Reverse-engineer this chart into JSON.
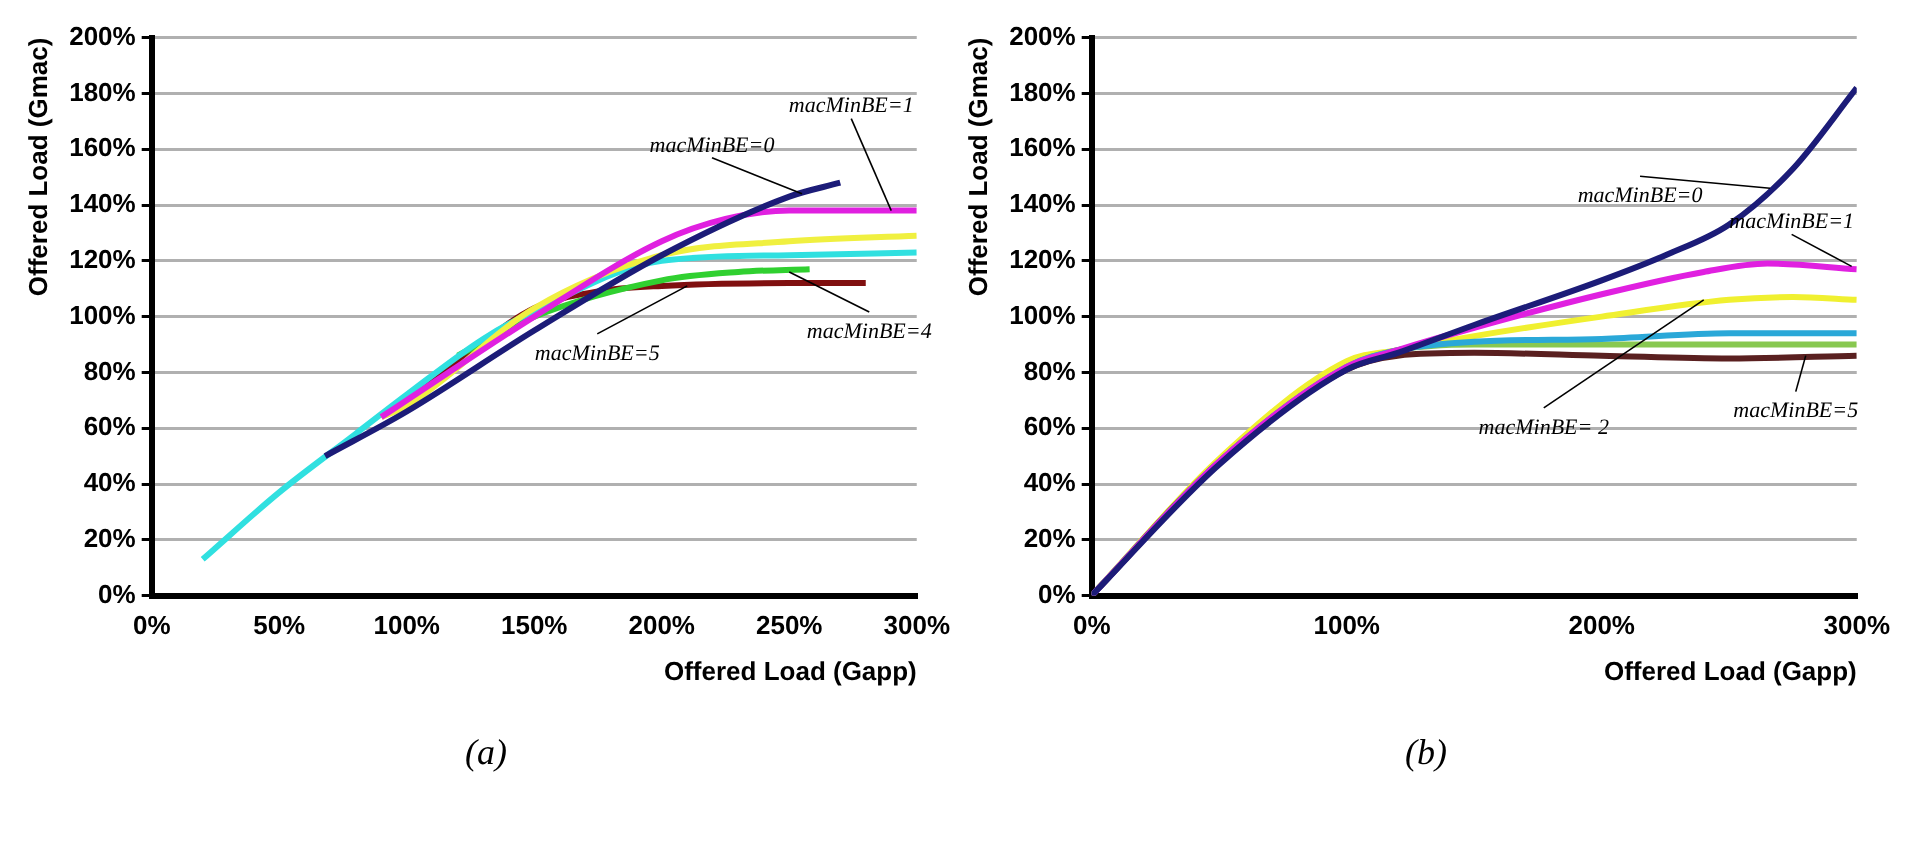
{
  "chart_data": [
    {
      "type": "line",
      "xlabel": "Offered Load (Gapp)",
      "ylabel": "Offered Load (Gmac)",
      "xlim": [
        0,
        300
      ],
      "ylim": [
        0,
        200
      ],
      "xticks": [
        {
          "value": 0,
          "label": "0%"
        },
        {
          "value": 50,
          "label": "50%"
        },
        {
          "value": 100,
          "label": "100%"
        },
        {
          "value": 150,
          "label": "150%"
        },
        {
          "value": 200,
          "label": "200%"
        },
        {
          "value": 250,
          "label": "250%"
        },
        {
          "value": 300,
          "label": "300%"
        }
      ],
      "yticks": [
        {
          "value": 0,
          "label": "0%"
        },
        {
          "value": 20,
          "label": "20%"
        },
        {
          "value": 40,
          "label": "40%"
        },
        {
          "value": 60,
          "label": "60%"
        },
        {
          "value": 80,
          "label": "80%"
        },
        {
          "value": 100,
          "label": "100%"
        },
        {
          "value": 120,
          "label": "120%"
        },
        {
          "value": 140,
          "label": "140%"
        },
        {
          "value": 160,
          "label": "160%"
        },
        {
          "value": 180,
          "label": "180%"
        },
        {
          "value": 200,
          "label": "200%"
        }
      ],
      "grid": "y",
      "legend": false,
      "marker": "none",
      "line_style": "solid",
      "series": [
        {
          "color": "#1c1c78",
          "x": [
            68,
            100,
            150,
            200,
            250,
            270
          ],
          "values": [
            50,
            66,
            95,
            122,
            143,
            148
          ]
        },
        {
          "color": "#e020e0",
          "x": [
            90,
            100,
            150,
            200,
            225,
            250,
            300
          ],
          "values": [
            64,
            70,
            100,
            127,
            135,
            138,
            138
          ]
        },
        {
          "color": "#f0f040",
          "x": [
            90,
            100,
            150,
            200,
            250,
            300
          ],
          "values": [
            64,
            68,
            103,
            122,
            127,
            129
          ]
        },
        {
          "color": "#30e0e0",
          "x": [
            20,
            50,
            80,
            100,
            130,
            150,
            200,
            250,
            300
          ],
          "values": [
            13,
            37,
            58,
            72,
            92,
            102,
            120,
            122,
            123
          ]
        },
        {
          "color": "#30d030",
          "x": [
            120,
            150,
            200,
            230,
            258
          ],
          "values": [
            86,
            100,
            113,
            116,
            117
          ]
        },
        {
          "color": "#801010",
          "x": [
            90,
            120,
            150,
            175,
            200,
            250,
            280
          ],
          "values": [
            64,
            84,
            103,
            109,
            111,
            112,
            112
          ]
        }
      ],
      "annotations": [
        {
          "text": "macMinBE=1",
          "x": 290,
          "y": 138
        },
        {
          "text": "macMinBE=0",
          "x": 255,
          "y": 144
        },
        {
          "text": "macMinBE=5",
          "x": 210,
          "y": 111
        },
        {
          "text": "macMinBE=4",
          "x": 250,
          "y": 116
        },
        "(a)"
      ]
    },
    {
      "type": "line",
      "xlabel": "Offered Load (Gapp)",
      "ylabel": "Offered Load (Gmac)",
      "xlim": [
        0,
        300
      ],
      "ylim": [
        0,
        200
      ],
      "xticks": [
        {
          "value": 0,
          "label": "0%"
        },
        {
          "value": 100,
          "label": "100%"
        },
        {
          "value": 200,
          "label": "200%"
        },
        {
          "value": 300,
          "label": "300%"
        }
      ],
      "yticks": [
        {
          "value": 0,
          "label": "0%"
        },
        {
          "value": 20,
          "label": "20%"
        },
        {
          "value": 40,
          "label": "40%"
        },
        {
          "value": 60,
          "label": "60%"
        },
        {
          "value": 80,
          "label": "80%"
        },
        {
          "value": 100,
          "label": "100%"
        },
        {
          "value": 120,
          "label": "120%"
        },
        {
          "value": 140,
          "label": "140%"
        },
        {
          "value": 160,
          "label": "160%"
        },
        {
          "value": 180,
          "label": "180%"
        },
        {
          "value": 200,
          "label": "200%"
        }
      ],
      "grid": "y",
      "legend": false,
      "marker": "none",
      "line_style": "solid",
      "series": [
        {
          "color": "#1c1c78",
          "x": [
            0,
            50,
            100,
            120,
            150,
            200,
            225,
            250,
            275,
            300
          ],
          "values": [
            0,
            47,
            81,
            87,
            97,
            113,
            122,
            133,
            153,
            182
          ]
        },
        {
          "color": "#e020e0",
          "x": [
            0,
            50,
            100,
            120,
            150,
            200,
            240,
            265,
            300
          ],
          "values": [
            0,
            48,
            82,
            88,
            96,
            108,
            116,
            119,
            117
          ]
        },
        {
          "color": "#2aa8d8",
          "x": [
            0,
            50,
            100,
            120,
            150,
            200,
            250,
            300
          ],
          "values": [
            0,
            48,
            82,
            88,
            91,
            92,
            94,
            94
          ]
        },
        {
          "color": "#88c850",
          "x": [
            0,
            50,
            100,
            120,
            150,
            200,
            250,
            300
          ],
          "values": [
            0,
            48,
            82,
            88,
            90,
            90,
            90,
            90
          ]
        },
        {
          "color": "#5a2020",
          "x": [
            0,
            50,
            100,
            120,
            150,
            200,
            250,
            300
          ],
          "values": [
            0,
            48,
            81,
            86,
            87,
            86,
            85,
            86
          ]
        },
        {
          "color": "#f0f030",
          "x": [
            0,
            50,
            100,
            120,
            150,
            200,
            250,
            275,
            300
          ],
          "values": [
            0,
            49,
            84,
            88,
            93,
            100,
            106,
            107,
            106
          ]
        }
      ],
      "annotations": [
        {
          "text": "macMinBE=0",
          "x": 266,
          "y": 146
        },
        {
          "text": "macMinBE=1",
          "x": 298,
          "y": 118
        },
        {
          "text": "macMinBE=5",
          "x": 280,
          "y": 86
        },
        {
          "text": "macMinBE= 2",
          "x": 240,
          "y": 106
        },
        "(b)"
      ]
    }
  ]
}
